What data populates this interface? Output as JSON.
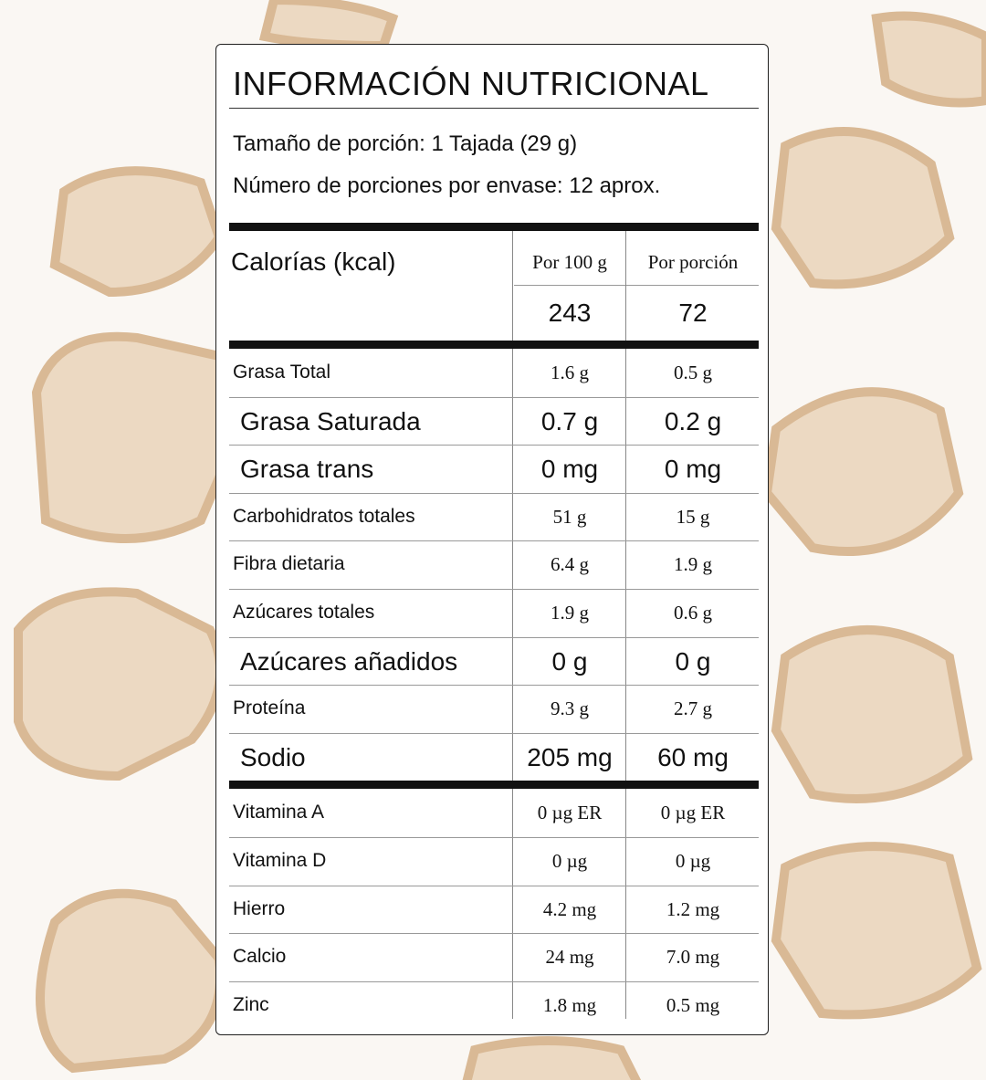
{
  "title": "INFORMACIÓN NUTRICIONAL",
  "serving_size": "Tamaño de porción: 1 Tajada (29 g)",
  "servings_per_container": "Número de porciones por envase: 12 aprox.",
  "calories": {
    "label": "Calorías (kcal)",
    "col_per100": "Por 100 g",
    "col_perserving": "Por porción",
    "per100": "243",
    "perserving": "72"
  },
  "nutrients": [
    {
      "name": "Grasa Total",
      "per100": "1.6 g",
      "perserving": "0.5 g",
      "bold": false
    },
    {
      "name": "Grasa Saturada",
      "per100": "0.7 g",
      "perserving": "0.2 g",
      "bold": true
    },
    {
      "name": "Grasa trans",
      "per100": "0 mg",
      "perserving": "0 mg",
      "bold": true
    },
    {
      "name": "Carbohidratos totales",
      "per100": "51 g",
      "perserving": "15 g",
      "bold": false
    },
    {
      "name": "Fibra dietaria",
      "per100": "6.4 g",
      "perserving": "1.9 g",
      "bold": false
    },
    {
      "name": "Azúcares totales",
      "per100": "1.9 g",
      "perserving": "0.6 g",
      "bold": false
    },
    {
      "name": "Azúcares añadidos",
      "per100": "0 g",
      "perserving": "0 g",
      "bold": true
    },
    {
      "name": "Proteína",
      "per100": "9.3 g",
      "perserving": "2.7 g",
      "bold": false
    },
    {
      "name": "Sodio",
      "per100": "205 mg",
      "perserving": "60 mg",
      "bold": true
    }
  ],
  "micronutrients": [
    {
      "name": "Vitamina A",
      "per100": "0 µg ER",
      "perserving": "0 µg ER"
    },
    {
      "name": "Vitamina D",
      "per100": "0 µg",
      "perserving": "0 µg"
    },
    {
      "name": "Hierro",
      "per100": "4.2 mg",
      "perserving": "1.2 mg"
    },
    {
      "name": "Calcio",
      "per100": "24 mg",
      "perserving": "7.0 mg"
    },
    {
      "name": "Zinc",
      "per100": "1.8 mg",
      "perserving": "0.5 mg"
    }
  ],
  "colors": {
    "text": "#111111",
    "rule": "#111111",
    "background": "#faf7f3",
    "bread": "#e9d3b8"
  }
}
